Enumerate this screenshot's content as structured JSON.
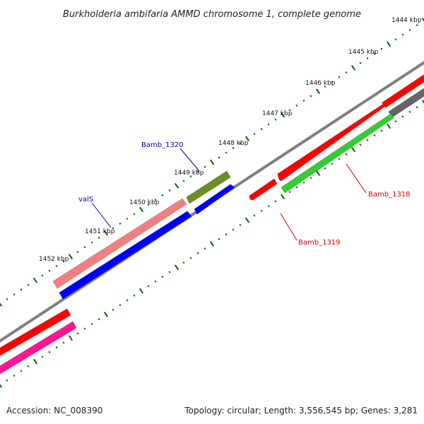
{
  "title": "Burkholderia ambifaria AMMD chromosome 1, complete genome",
  "ticks": [
    "1444 kbp",
    "1445 kbp",
    "1446 kbp",
    "1447 kbp",
    "1448 kbp",
    "1449 kbp",
    "1450 kbp",
    "1451 kbp",
    "1452 kbp"
  ],
  "genes": [
    {
      "name": "Bamb_1320",
      "color": "#00009f"
    },
    {
      "name": "valS",
      "color": "#00009f"
    },
    {
      "name": "Bamb_1318",
      "color": "#cc0000"
    },
    {
      "name": "Bamb_1319",
      "color": "#cc0000"
    }
  ],
  "colors": {
    "backbone": "#808080",
    "tick": "#006400",
    "cds_red": "#ff0000",
    "cds_green": "#33cc33",
    "cds_blue": "#0000ff",
    "cds_olive": "#6b8e23",
    "cds_salmon": "#f08080",
    "cds_pink": "#ff1493",
    "cds_gray": "#666666"
  },
  "footer": {
    "accession": "Accession: NC_008390",
    "summary": "Topology: circular; Length: 3,556,545 bp; Genes: 3,281"
  }
}
